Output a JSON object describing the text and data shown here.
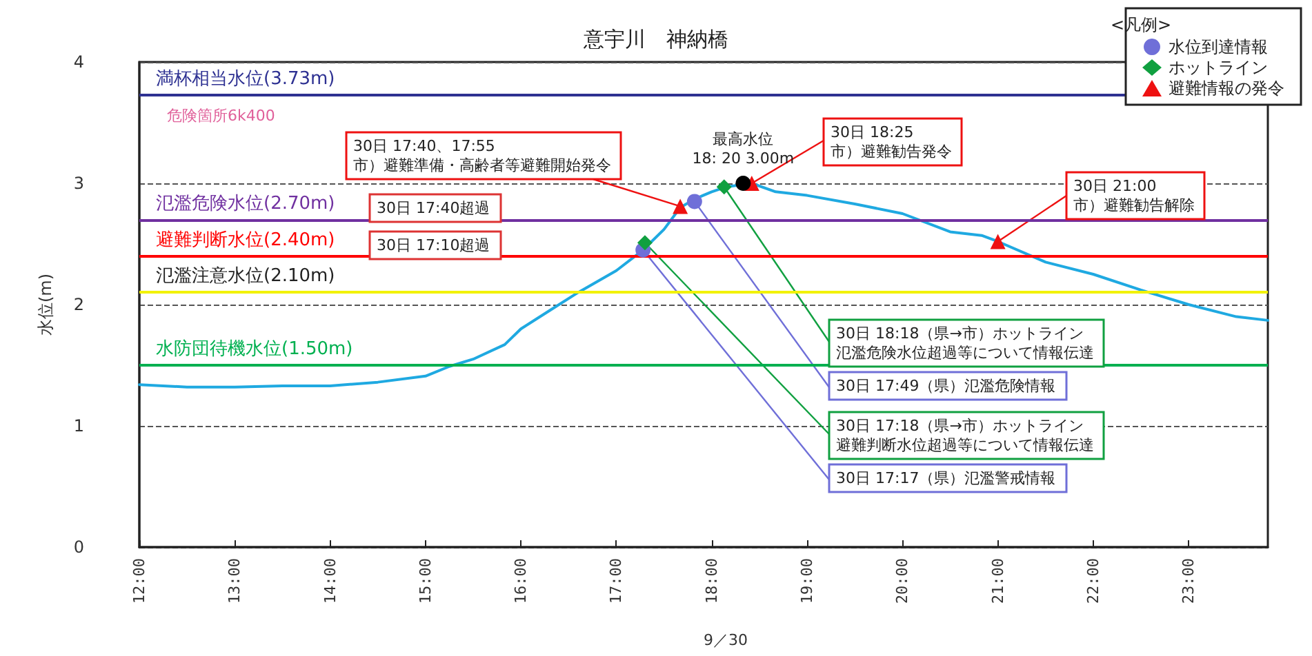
{
  "chart_data": {
    "type": "line",
    "title": "意宇川　神納橋",
    "xlabel": "9／30",
    "ylabel": "水位(m)",
    "legend_title": "<凡例>",
    "xlim": [
      12,
      23.83
    ],
    "xticks": [
      {
        "value": 12,
        "label": "12:00"
      },
      {
        "value": 13,
        "label": "13:00"
      },
      {
        "value": 14,
        "label": "14:00"
      },
      {
        "value": 15,
        "label": "15:00"
      },
      {
        "value": 16,
        "label": "16:00"
      },
      {
        "value": 17,
        "label": "17:00"
      },
      {
        "value": 18,
        "label": "18:00"
      },
      {
        "value": 19,
        "label": "19:00"
      },
      {
        "value": 20,
        "label": "20:00"
      },
      {
        "value": 21,
        "label": "21:00"
      },
      {
        "value": 22,
        "label": "22:00"
      },
      {
        "value": 23,
        "label": "23:00"
      }
    ],
    "ylim": [
      0,
      4
    ],
    "yticks": [
      0,
      1,
      2,
      3,
      4
    ],
    "grid": "y",
    "line_style": "solid",
    "marker": "none",
    "legend": "top right",
    "series": [
      {
        "color": "#1fa9e1",
        "x": [
          12,
          12.5,
          13,
          13.5,
          14,
          14.5,
          15,
          15.25,
          15.5,
          15.83,
          16,
          16.3,
          16.6,
          17,
          17.28,
          17.5,
          17.67,
          17.82,
          18,
          18.15,
          18.42,
          18.67,
          19,
          19.5,
          20,
          20.5,
          20.83,
          21,
          21.5,
          22,
          22.5,
          23,
          23.5,
          23.83
        ],
        "values": [
          1.34,
          1.32,
          1.32,
          1.33,
          1.33,
          1.36,
          1.41,
          1.49,
          1.55,
          1.67,
          1.8,
          1.95,
          2.1,
          2.28,
          2.45,
          2.62,
          2.8,
          2.87,
          2.93,
          2.97,
          3.0,
          2.93,
          2.9,
          2.83,
          2.75,
          2.6,
          2.57,
          2.52,
          2.35,
          2.25,
          2.12,
          2.0,
          1.9,
          1.87
        ]
      },
      {
        "type": "scatter",
        "name": "水位到達情報",
        "color": "#6f6fd8",
        "marker": "circle",
        "x": [
          17.28,
          17.82
        ],
        "values": [
          2.45,
          2.85
        ]
      },
      {
        "type": "scatter",
        "name": "ホットライン",
        "color": "#10a040",
        "marker": "diamond",
        "x": [
          17.3,
          18.13
        ],
        "values": [
          2.51,
          2.97
        ]
      },
      {
        "type": "scatter",
        "name": "避難情報の発令",
        "color": "#ee1111",
        "marker": "triangle",
        "x": [
          17.67,
          18.42,
          21
        ],
        "values": [
          2.81,
          3.0,
          2.52
        ]
      },
      {
        "type": "scatter",
        "color": "#000000",
        "marker": "circle",
        "x": [
          18.33
        ],
        "values": [
          3.0
        ]
      }
    ],
    "ref_lines": [
      {
        "axis": "y",
        "value": 3.73,
        "label": "満杯相当水位(3.73m)",
        "color": "#2e3192"
      },
      {
        "axis": "y",
        "value": 2.7,
        "label": "氾濫危険水位(2.70m)",
        "color": "#7030a0"
      },
      {
        "axis": "y",
        "value": 2.4,
        "label": "避難判断水位(2.40m)",
        "color": "#ff0000"
      },
      {
        "axis": "y",
        "value": 2.1,
        "label": "氾濫注意水位(2.10m)",
        "color": "#f2f200"
      },
      {
        "axis": "y",
        "value": 1.5,
        "label": "水防団待機水位(1.50m)",
        "color": "#00b050"
      }
    ],
    "annotations": [
      {
        "text": "30日 17:40、17:55\n市）避難準備・高齢者等避難開始発令",
        "x": 17.67,
        "y": 2.81
      },
      "30日 17:40超過",
      "30日 17:10超過",
      {
        "text": "最高水位\n18: 20 3.00m",
        "x": 18.33,
        "y": 3.0
      },
      {
        "text": "30日 18:25\n市）避難勧告発令",
        "x": 18.42,
        "y": 3.0
      },
      {
        "text": "30日 21:00\n市）避難勧告解除",
        "x": 21,
        "y": 2.52
      },
      {
        "text": "30日 18:18（県→市）ホットライン氾濫危険水位超過等について情報伝達",
        "x": 18.13,
        "y": 2.97
      },
      {
        "text": "30日 17:49（県）氾濫危険情報",
        "x": 17.82,
        "y": 2.85
      },
      {
        "text": "30日 17:18（県→市）ホットライン避難判断水位超過等について情報伝達",
        "x": 17.3,
        "y": 2.51
      },
      {
        "text": "30日 17:17（県）氾濫警戒情報",
        "x": 17.28,
        "y": 2.45
      },
      "危険箇所6k400"
    ]
  }
}
